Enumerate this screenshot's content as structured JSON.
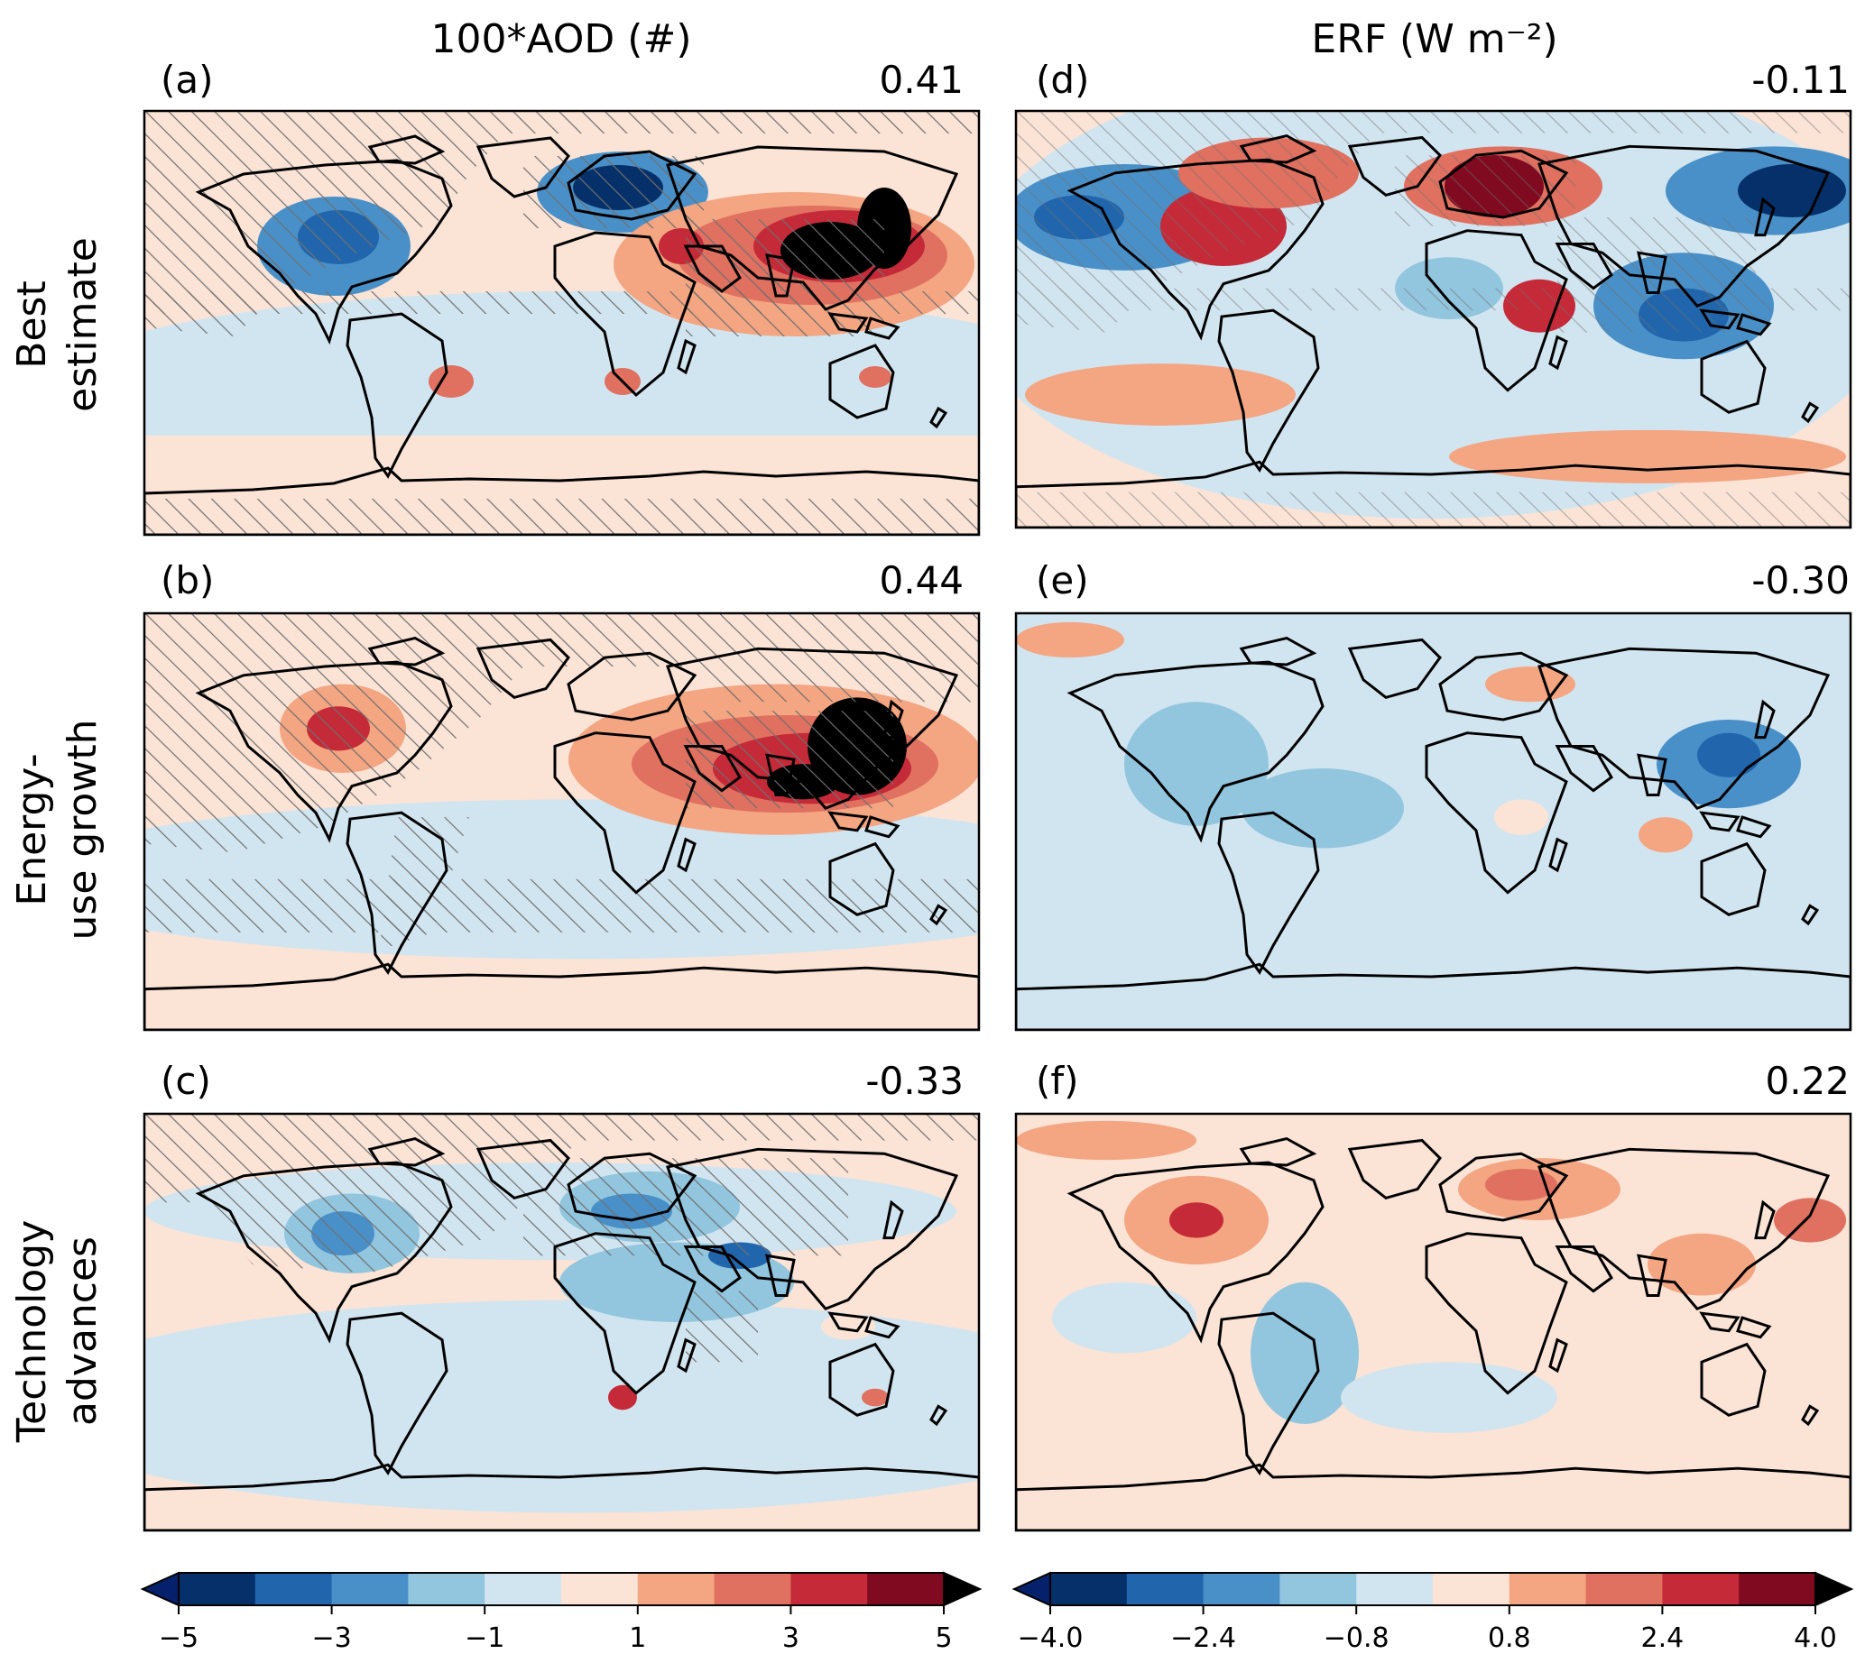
{
  "columns": [
    {
      "title": "100*AOD (#)"
    },
    {
      "title": "ERF (W m⁻²)"
    }
  ],
  "rows": [
    {
      "label_lines": [
        "Best",
        "estimate"
      ]
    },
    {
      "label_lines": [
        "Energy-",
        "use growth"
      ]
    },
    {
      "label_lines": [
        "Technology",
        "advances"
      ]
    }
  ],
  "panels": [
    {
      "id": "a",
      "label": "(a)",
      "value": "0.41",
      "variable": "AOD",
      "scenario": "Best estimate"
    },
    {
      "id": "b",
      "label": "(b)",
      "value": "0.44",
      "variable": "AOD",
      "scenario": "Energy-use growth"
    },
    {
      "id": "c",
      "label": "(c)",
      "value": "-0.33",
      "variable": "AOD",
      "scenario": "Technology advances"
    },
    {
      "id": "d",
      "label": "(d)",
      "value": "-0.11",
      "variable": "ERF",
      "scenario": "Best estimate"
    },
    {
      "id": "e",
      "label": "(e)",
      "value": "-0.30",
      "variable": "ERF",
      "scenario": "Energy-use growth"
    },
    {
      "id": "f",
      "label": "(f)",
      "value": "0.22",
      "variable": "ERF",
      "scenario": "Technology advances"
    }
  ],
  "colorbars": {
    "aod": {
      "ticks": [
        "−5",
        "−3",
        "−1",
        "1",
        "3",
        "5"
      ],
      "levels": [
        -5,
        -4,
        -3,
        -2,
        -1,
        0,
        1,
        2,
        3,
        4,
        5
      ],
      "colors": [
        "#06306a",
        "#2166ac",
        "#4a90c8",
        "#92c5de",
        "#d1e5f0",
        "#fbe3d6",
        "#f4a582",
        "#e07060",
        "#c52a38",
        "#800b20"
      ],
      "under": "#06216b",
      "over": "#000000"
    },
    "erf": {
      "ticks": [
        "−4.0",
        "−2.4",
        "−0.8",
        "0.8",
        "2.4",
        "4.0"
      ],
      "levels": [
        -4.0,
        -3.2,
        -2.4,
        -1.6,
        -0.8,
        0,
        0.8,
        1.6,
        2.4,
        3.2,
        4.0
      ],
      "colors": [
        "#06306a",
        "#2166ac",
        "#4a90c8",
        "#92c5de",
        "#d1e5f0",
        "#fbe3d6",
        "#f4a582",
        "#e07060",
        "#c52a38",
        "#800b20"
      ],
      "under": "#06216b",
      "over": "#000000"
    }
  }
}
